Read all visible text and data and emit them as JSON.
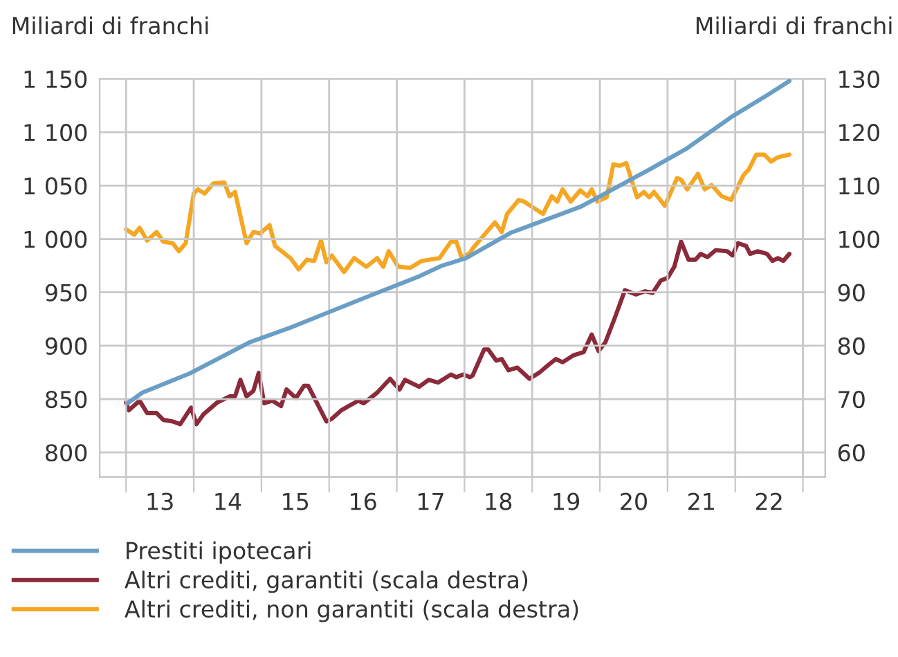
{
  "chart_data": {
    "type": "line",
    "ylabel": "Miliardi di franchi",
    "y2label": "Miliardi di franchi",
    "xlim": [
      12.11,
      22.83
    ],
    "ylim": [
      777,
      1150
    ],
    "y2lim": [
      55.4,
      130
    ],
    "xticks": [
      {
        "value": 12.5,
        "label": null
      },
      13,
      {
        "value": 13.5,
        "label": null
      },
      14,
      {
        "value": 14.5,
        "label": null
      },
      15,
      {
        "value": 15.5,
        "label": null
      },
      16,
      {
        "value": 16.5,
        "label": null
      },
      17,
      {
        "value": 17.5,
        "label": null
      },
      18,
      {
        "value": 18.5,
        "label": null
      },
      19,
      {
        "value": 19.5,
        "label": null
      },
      20,
      {
        "value": 20.5,
        "label": null
      },
      21,
      {
        "value": 21.5,
        "label": null
      },
      22,
      {
        "value": 22.5,
        "label": null
      }
    ],
    "yticks": [
      800,
      850,
      900,
      950,
      {
        "value": 1000,
        "label": "1 000"
      },
      {
        "value": 1050,
        "label": "1 050"
      },
      {
        "value": 1100,
        "label": "1 100"
      },
      {
        "value": 1150,
        "label": "1 150"
      }
    ],
    "y2ticks": [
      60,
      70,
      80,
      90,
      100,
      110,
      120,
      130
    ],
    "grid": true,
    "legend": "bottom",
    "series": [
      {
        "name": "Prestiti ipotecari",
        "color": "#6a9ec5",
        "x": [
          12.52,
          12.74,
          13.44,
          14.32,
          14.93,
          15.48,
          16.15,
          16.83,
          17.17,
          17.52,
          18.19,
          19.21,
          20.23,
          20.79,
          21.46,
          21.93,
          22.3
        ],
        "values": [
          846,
          856,
          874,
          903,
          917,
          931,
          948,
          965,
          975,
          982,
          1006,
          1030,
          1065,
          1085,
          1115,
          1133,
          1148
        ]
      },
      {
        "name": "Altri crediti, garantiti (scala destra)",
        "color": "#8b2a3a",
        "axis": "y2",
        "x": [
          12.5,
          12.54,
          12.7,
          12.81,
          12.95,
          13.05,
          13.19,
          13.3,
          13.46,
          13.54,
          13.64,
          13.85,
          14.03,
          14.11,
          14.19,
          14.28,
          14.38,
          14.46,
          14.54,
          14.66,
          14.79,
          14.87,
          15.01,
          15.13,
          15.19,
          15.46,
          15.54,
          15.68,
          15.93,
          16.01,
          16.11,
          16.21,
          16.4,
          16.54,
          16.62,
          16.83,
          16.97,
          17.11,
          17.3,
          17.38,
          17.48,
          17.58,
          17.62,
          17.79,
          17.85,
          17.97,
          18.05,
          18.15,
          18.28,
          18.46,
          18.6,
          18.74,
          18.85,
          18.95,
          19.11,
          19.26,
          19.38,
          19.48,
          19.58,
          19.72,
          19.87,
          20.03,
          20.17,
          20.28,
          20.4,
          20.5,
          20.6,
          20.7,
          20.81,
          20.91,
          20.99,
          21.09,
          21.21,
          21.38,
          21.46,
          21.54,
          21.66,
          21.72,
          21.83,
          21.97,
          22.05,
          22.13,
          22.21,
          22.3
        ],
        "values": [
          69.4,
          67.9,
          69.7,
          67.4,
          67.4,
          66.1,
          65.8,
          65.3,
          68.4,
          65.3,
          67.1,
          69.4,
          70.5,
          70.5,
          73.6,
          70.5,
          71.5,
          74.9,
          69.2,
          69.7,
          68.7,
          71.8,
          70.2,
          72.5,
          72.5,
          65.8,
          66.3,
          67.9,
          69.7,
          69.2,
          70.2,
          71.2,
          73.8,
          71.8,
          73.6,
          72.3,
          73.6,
          73.1,
          74.6,
          74.1,
          74.6,
          74.1,
          74.4,
          79.3,
          79.3,
          77.2,
          77.5,
          75.4,
          75.9,
          73.8,
          74.9,
          76.4,
          77.5,
          76.9,
          78.2,
          78.8,
          82.1,
          79.0,
          80.6,
          85.2,
          90.4,
          89.6,
          90.2,
          89.9,
          92.2,
          92.7,
          94.8,
          99.5,
          96.1,
          96.1,
          97.2,
          96.6,
          97.9,
          97.7,
          96.9,
          99.2,
          98.7,
          97.2,
          97.7,
          97.2,
          95.9,
          96.4,
          95.9,
          97.2
        ]
      },
      {
        "name": "Altri crediti, non garantiti (scala destra)",
        "color": "#f5a623",
        "axis": "y2",
        "x": [
          12.5,
          12.62,
          12.7,
          12.81,
          12.95,
          13.05,
          13.19,
          13.28,
          13.38,
          13.5,
          13.56,
          13.66,
          13.79,
          13.95,
          14.03,
          14.11,
          14.28,
          14.38,
          14.48,
          14.62,
          14.7,
          14.93,
          15.05,
          15.17,
          15.28,
          15.38,
          15.46,
          15.54,
          15.72,
          15.87,
          16.05,
          16.21,
          16.3,
          16.38,
          16.52,
          16.7,
          16.87,
          17.13,
          17.3,
          17.38,
          17.46,
          17.58,
          17.62,
          17.74,
          17.95,
          18.05,
          18.13,
          18.3,
          18.38,
          18.5,
          18.66,
          18.79,
          18.87,
          18.95,
          19.07,
          19.21,
          19.32,
          19.38,
          19.46,
          19.6,
          19.7,
          19.79,
          19.89,
          20.05,
          20.15,
          20.23,
          20.3,
          20.46,
          20.64,
          20.7,
          20.79,
          20.95,
          21.05,
          21.15,
          21.3,
          21.44,
          21.62,
          21.7,
          21.81,
          21.93,
          22.03,
          22.13,
          22.3
        ],
        "values": [
          101.8,
          100.8,
          102.1,
          99.7,
          101.3,
          99.5,
          99.2,
          97.7,
          99.2,
          108.5,
          109.3,
          108.5,
          110.4,
          110.6,
          108.0,
          108.8,
          99.2,
          101.3,
          101.0,
          102.6,
          98.7,
          96.4,
          94.3,
          96.1,
          95.9,
          99.7,
          95.6,
          96.9,
          93.8,
          96.4,
          94.8,
          96.4,
          94.8,
          97.7,
          94.8,
          94.6,
          95.9,
          96.4,
          99.5,
          99.5,
          96.4,
          97.4,
          98.2,
          100.0,
          103.1,
          101.3,
          104.7,
          107.3,
          107.0,
          106.0,
          104.7,
          108.0,
          107.0,
          109.3,
          107.0,
          109.1,
          108.0,
          109.3,
          107.0,
          107.8,
          114.0,
          113.7,
          114.2,
          107.8,
          108.8,
          107.8,
          108.8,
          106.2,
          111.4,
          111.1,
          109.3,
          112.2,
          109.3,
          110.1,
          108.0,
          107.3,
          111.9,
          113.0,
          115.8,
          115.8,
          114.5,
          115.3,
          115.8
        ]
      }
    ]
  }
}
